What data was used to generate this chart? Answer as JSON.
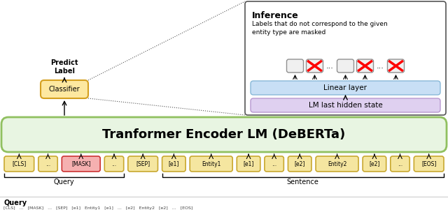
{
  "title": "Tranformer Encoder LM (DeBERTa)",
  "tokens": [
    "[CLS]",
    "...",
    "[MASK]",
    "...",
    "[SEP]",
    "[e1]",
    "Entity1",
    "[e1]",
    "...",
    "[e2]",
    "Entity2",
    "[e2]",
    "...",
    "[EOS]"
  ],
  "token_colors": [
    "#f5e6a0",
    "#f5e6a0",
    "#f5b0b0",
    "#f5e6a0",
    "#f5e6a0",
    "#f5e6a0",
    "#f5e6a0",
    "#f5e6a0",
    "#f5e6a0",
    "#f5e6a0",
    "#f5e6a0",
    "#f5e6a0",
    "#f5e6a0",
    "#f5e6a0"
  ],
  "token_edge_colors": [
    "#c8a830",
    "#c8a830",
    "#cc3333",
    "#c8a830",
    "#c8a830",
    "#c8a830",
    "#c8a830",
    "#c8a830",
    "#c8a830",
    "#c8a830",
    "#c8a830",
    "#c8a830",
    "#c8a830",
    "#c8a830"
  ],
  "encoder_bg": "#e8f5e2",
  "encoder_border": "#90c060",
  "classifier_bg": "#fde8a0",
  "classifier_border": "#d4a020",
  "inference_bg": "#ffffff",
  "linear_layer_bg": "#c8dff5",
  "lm_hidden_bg": "#dfd0f0",
  "query_label": "Query",
  "sentence_label": "Sentence",
  "classifier_label": "Classifier",
  "predict_label": "Predict\nLabel",
  "inference_title": "Inference",
  "inference_desc": "Labels that do not correspond to the given\nentity type are masked",
  "linear_layer_label": "Linear layer",
  "lm_hidden_label": "LM last hidden state",
  "bottom_section_label": "Query",
  "bottom_section_text": "[CLS]   ...   [MASK]   ...   [SEP]   [e1]   Entity1   [e1]   ...   [e2]   Entity2   [e2]   ...   [EOS]"
}
